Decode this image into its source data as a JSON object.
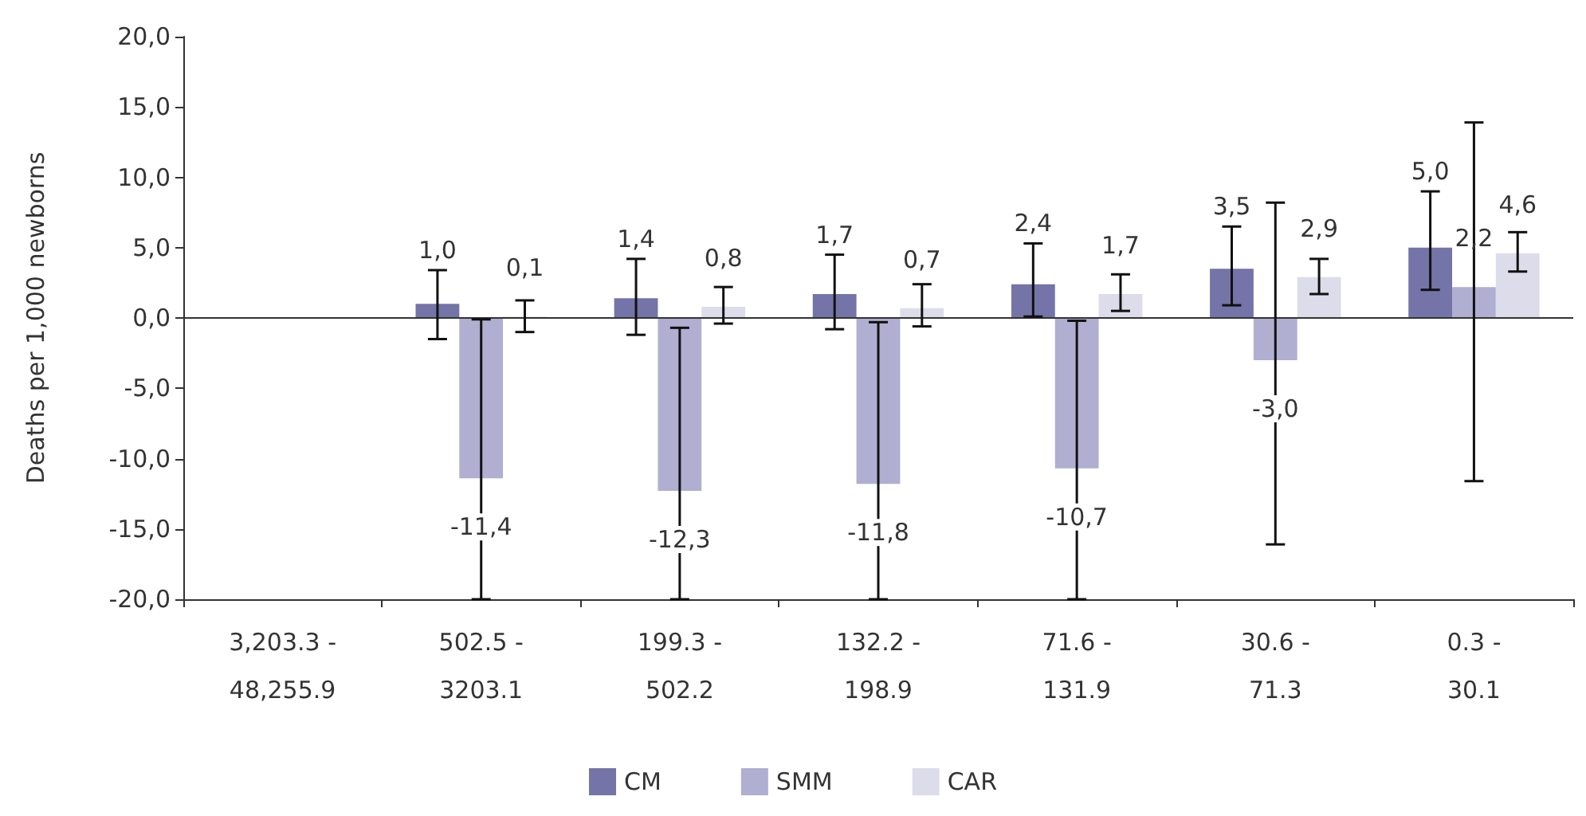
{
  "chart_data": {
    "type": "bar",
    "ylabel": "Deaths per 1,000 newborns",
    "categories": [
      "3,203.3 -\n48,255.9",
      "502.5 -\n3203.1",
      "199.3 -\n502.2",
      "132.2 -\n198.9",
      "71.6 -\n131.9",
      "30.6 -\n71.3",
      "0.3 -\n30.1"
    ],
    "series": [
      {
        "name": "CM",
        "color": "#7474a8",
        "values": [
          null,
          1.0,
          1.4,
          1.7,
          2.4,
          3.5,
          5.0
        ],
        "value_labels": [
          null,
          "1,0",
          "1,4",
          "1,7",
          "2,4",
          "3,5",
          "5,0"
        ],
        "errors": [
          null,
          [
            -1.5,
            3.4
          ],
          [
            -1.2,
            4.2
          ],
          [
            -0.8,
            4.5
          ],
          [
            0.1,
            5.3
          ],
          [
            0.9,
            6.5
          ],
          [
            2.0,
            9.0
          ]
        ]
      },
      {
        "name": "SMM",
        "color": "#b0afd1",
        "values": [
          null,
          -11.4,
          -12.3,
          -11.8,
          -10.7,
          -3.0,
          2.2
        ],
        "value_labels": [
          null,
          "-11,4",
          "-12,3",
          "-11,8",
          "-10,7",
          "-3,0",
          "2,2"
        ],
        "errors": [
          null,
          [
            -20,
            -0.1
          ],
          [
            -20,
            -0.7
          ],
          [
            -20,
            -0.3
          ],
          [
            -20,
            -0.2
          ],
          [
            -16.1,
            8.2
          ],
          [
            -11.6,
            13.9
          ]
        ]
      },
      {
        "name": "CAR",
        "color": "#dcdcea",
        "values": [
          null,
          0.1,
          0.8,
          0.7,
          1.7,
          2.9,
          4.6
        ],
        "value_labels": [
          null,
          "0,1",
          "0,8",
          "0,7",
          "1,7",
          "2,9",
          "4,6"
        ],
        "errors": [
          null,
          [
            -1.0,
            1.25
          ],
          [
            -0.4,
            2.2
          ],
          [
            -0.6,
            2.4
          ],
          [
            0.5,
            3.1
          ],
          [
            1.7,
            4.2
          ],
          [
            3.3,
            6.1
          ]
        ]
      }
    ],
    "ylim": [
      -20,
      20
    ],
    "yticks": [
      {
        "value": -20,
        "label": "-20,0"
      },
      {
        "value": -15,
        "label": "-15,0"
      },
      {
        "value": -10,
        "label": "-10,0"
      },
      {
        "value": -5,
        "label": "-5,0"
      },
      {
        "value": 0,
        "label": "0,0"
      },
      {
        "value": 5,
        "label": "5,0"
      },
      {
        "value": 10,
        "label": "10,0"
      },
      {
        "value": 15,
        "label": "15,0"
      },
      {
        "value": 20,
        "label": "20,0"
      }
    ],
    "grid": false,
    "ref_lines": [
      {
        "axis": "y",
        "value": 0,
        "color": "#333333"
      }
    ],
    "legend": "bottom"
  }
}
